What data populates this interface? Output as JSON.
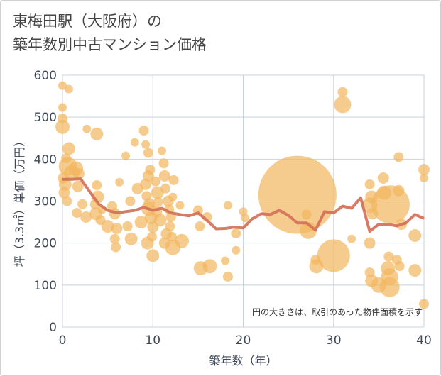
{
  "title_lines": [
    "東梅田駅（大阪府）の",
    "築年数別中古マンション価格"
  ],
  "chart_data": {
    "type": "scatter",
    "title": "東梅田駅（大阪府）の 築年数別中古マンション価格",
    "xlabel": "築年数（年）",
    "ylabel": "坪（3.3㎡）単価（万円）",
    "xlim": [
      0,
      40
    ],
    "ylim": [
      0,
      600
    ],
    "xticks": [
      0,
      10,
      20,
      30,
      40
    ],
    "yticks": [
      0,
      100,
      200,
      300,
      400,
      500,
      600
    ],
    "grid": true,
    "annotation": "円の大きさは、取引のあった物件面積を示す",
    "colors": {
      "bubble": "#f2b75e",
      "line": "#d4705a",
      "grid": "#c8d3df",
      "text": "#3f4756"
    },
    "bubbles": [
      {
        "x": 0,
        "y": 575,
        "r": 6
      },
      {
        "x": 0.7,
        "y": 567,
        "r": 6
      },
      {
        "x": 0,
        "y": 523,
        "r": 6
      },
      {
        "x": 0,
        "y": 497,
        "r": 7
      },
      {
        "x": 0,
        "y": 477,
        "r": 10
      },
      {
        "x": 0.7,
        "y": 425,
        "r": 9
      },
      {
        "x": 0.4,
        "y": 402,
        "r": 7
      },
      {
        "x": 0.6,
        "y": 383,
        "r": 13
      },
      {
        "x": 1,
        "y": 367,
        "r": 11
      },
      {
        "x": 0.1,
        "y": 355,
        "r": 8
      },
      {
        "x": 0.3,
        "y": 340,
        "r": 9
      },
      {
        "x": 0.2,
        "y": 320,
        "r": 8
      },
      {
        "x": 0.5,
        "y": 300,
        "r": 7
      },
      {
        "x": 1.5,
        "y": 378,
        "r": 10
      },
      {
        "x": 1.8,
        "y": 365,
        "r": 8
      },
      {
        "x": 1.7,
        "y": 335,
        "r": 8
      },
      {
        "x": 1.6,
        "y": 272,
        "r": 7
      },
      {
        "x": 2.2,
        "y": 293,
        "r": 7
      },
      {
        "x": 2.6,
        "y": 262,
        "r": 8
      },
      {
        "x": 2.7,
        "y": 472,
        "r": 6
      },
      {
        "x": 3.8,
        "y": 460,
        "r": 9
      },
      {
        "x": 3.8,
        "y": 338,
        "r": 7
      },
      {
        "x": 3.9,
        "y": 310,
        "r": 9
      },
      {
        "x": 3.6,
        "y": 292,
        "r": 7
      },
      {
        "x": 3.7,
        "y": 270,
        "r": 9
      },
      {
        "x": 4.2,
        "y": 255,
        "r": 7
      },
      {
        "x": 4.4,
        "y": 280,
        "r": 6
      },
      {
        "x": 5.0,
        "y": 240,
        "r": 9
      },
      {
        "x": 5.5,
        "y": 288,
        "r": 7
      },
      {
        "x": 5.8,
        "y": 270,
        "r": 8
      },
      {
        "x": 6.0,
        "y": 235,
        "r": 8
      },
      {
        "x": 5.8,
        "y": 210,
        "r": 7
      },
      {
        "x": 5.9,
        "y": 190,
        "r": 7
      },
      {
        "x": 6.3,
        "y": 345,
        "r": 6
      },
      {
        "x": 7.0,
        "y": 408,
        "r": 6
      },
      {
        "x": 7.5,
        "y": 300,
        "r": 7
      },
      {
        "x": 7.2,
        "y": 240,
        "r": 7
      },
      {
        "x": 7.6,
        "y": 210,
        "r": 9
      },
      {
        "x": 8.0,
        "y": 440,
        "r": 6
      },
      {
        "x": 8.3,
        "y": 330,
        "r": 8
      },
      {
        "x": 8.7,
        "y": 250,
        "r": 9
      },
      {
        "x": 9.0,
        "y": 468,
        "r": 7
      },
      {
        "x": 9.2,
        "y": 435,
        "r": 6
      },
      {
        "x": 9.5,
        "y": 415,
        "r": 7
      },
      {
        "x": 9.7,
        "y": 375,
        "r": 7
      },
      {
        "x": 9.5,
        "y": 360,
        "r": 8
      },
      {
        "x": 9.2,
        "y": 340,
        "r": 8
      },
      {
        "x": 9.3,
        "y": 312,
        "r": 7
      },
      {
        "x": 9.6,
        "y": 294,
        "r": 8
      },
      {
        "x": 9.5,
        "y": 282,
        "r": 10
      },
      {
        "x": 9.8,
        "y": 260,
        "r": 9
      },
      {
        "x": 10.0,
        "y": 238,
        "r": 8
      },
      {
        "x": 9.9,
        "y": 215,
        "r": 7
      },
      {
        "x": 9.4,
        "y": 200,
        "r": 9
      },
      {
        "x": 10,
        "y": 170,
        "r": 9
      },
      {
        "x": 10.3,
        "y": 347,
        "r": 7
      },
      {
        "x": 10.5,
        "y": 320,
        "r": 9
      },
      {
        "x": 10.6,
        "y": 298,
        "r": 7
      },
      {
        "x": 10.4,
        "y": 275,
        "r": 8
      },
      {
        "x": 10.8,
        "y": 255,
        "r": 9
      },
      {
        "x": 11.0,
        "y": 420,
        "r": 6
      },
      {
        "x": 11.2,
        "y": 390,
        "r": 7
      },
      {
        "x": 11.3,
        "y": 360,
        "r": 8
      },
      {
        "x": 11.4,
        "y": 330,
        "r": 7
      },
      {
        "x": 11.7,
        "y": 300,
        "r": 8
      },
      {
        "x": 11.8,
        "y": 280,
        "r": 7
      },
      {
        "x": 12.0,
        "y": 262,
        "r": 7
      },
      {
        "x": 11.9,
        "y": 240,
        "r": 7
      },
      {
        "x": 11.5,
        "y": 222,
        "r": 8
      },
      {
        "x": 11.3,
        "y": 200,
        "r": 8
      },
      {
        "x": 12.1,
        "y": 215,
        "r": 7
      },
      {
        "x": 12.2,
        "y": 190,
        "r": 11
      },
      {
        "x": 12.3,
        "y": 350,
        "r": 7
      },
      {
        "x": 12.2,
        "y": 310,
        "r": 6
      },
      {
        "x": 13.0,
        "y": 290,
        "r": 6
      },
      {
        "x": 13.2,
        "y": 205,
        "r": 10
      },
      {
        "x": 15.0,
        "y": 278,
        "r": 7
      },
      {
        "x": 15.2,
        "y": 240,
        "r": 7
      },
      {
        "x": 16.0,
        "y": 262,
        "r": 7
      },
      {
        "x": 15.3,
        "y": 140,
        "r": 10
      },
      {
        "x": 16.3,
        "y": 145,
        "r": 10
      },
      {
        "x": 18.3,
        "y": 290,
        "r": 6
      },
      {
        "x": 19.2,
        "y": 223,
        "r": 7
      },
      {
        "x": 19.2,
        "y": 183,
        "r": 6
      },
      {
        "x": 18.0,
        "y": 158,
        "r": 6
      },
      {
        "x": 18.3,
        "y": 120,
        "r": 7
      },
      {
        "x": 20.0,
        "y": 275,
        "r": 6
      },
      {
        "x": 20.2,
        "y": 260,
        "r": 6
      },
      {
        "x": 26.0,
        "y": 315,
        "r": 55
      },
      {
        "x": 27.0,
        "y": 268,
        "r": 7
      },
      {
        "x": 27.2,
        "y": 230,
        "r": 12
      },
      {
        "x": 28.0,
        "y": 160,
        "r": 7
      },
      {
        "x": 28.1,
        "y": 145,
        "r": 10
      },
      {
        "x": 30.0,
        "y": 170,
        "r": 23
      },
      {
        "x": 31.0,
        "y": 560,
        "r": 7
      },
      {
        "x": 31.0,
        "y": 530,
        "r": 12
      },
      {
        "x": 32.0,
        "y": 210,
        "r": 6
      },
      {
        "x": 34.0,
        "y": 340,
        "r": 7
      },
      {
        "x": 34.2,
        "y": 310,
        "r": 9
      },
      {
        "x": 34.0,
        "y": 290,
        "r": 11
      },
      {
        "x": 34.3,
        "y": 270,
        "r": 8
      },
      {
        "x": 34.0,
        "y": 200,
        "r": 8
      },
      {
        "x": 34.0,
        "y": 130,
        "r": 7
      },
      {
        "x": 34.2,
        "y": 110,
        "r": 9
      },
      {
        "x": 35.0,
        "y": 100,
        "r": 11
      },
      {
        "x": 35.5,
        "y": 355,
        "r": 8
      },
      {
        "x": 35.6,
        "y": 320,
        "r": 10
      },
      {
        "x": 36.3,
        "y": 292,
        "r": 27
      },
      {
        "x": 36.1,
        "y": 168,
        "r": 7
      },
      {
        "x": 36.0,
        "y": 140,
        "r": 10
      },
      {
        "x": 36.2,
        "y": 120,
        "r": 12
      },
      {
        "x": 36.2,
        "y": 95,
        "r": 14
      },
      {
        "x": 37.0,
        "y": 160,
        "r": 7
      },
      {
        "x": 37.3,
        "y": 145,
        "r": 7
      },
      {
        "x": 37.2,
        "y": 325,
        "r": 8
      },
      {
        "x": 37.5,
        "y": 245,
        "r": 8
      },
      {
        "x": 37.2,
        "y": 405,
        "r": 7
      },
      {
        "x": 39.0,
        "y": 218,
        "r": 9
      },
      {
        "x": 39.0,
        "y": 135,
        "r": 9
      },
      {
        "x": 40.0,
        "y": 375,
        "r": 8
      },
      {
        "x": 40.0,
        "y": 355,
        "r": 6
      },
      {
        "x": 40.0,
        "y": 55,
        "r": 7
      }
    ],
    "trend": [
      {
        "x": 0,
        "y": 352
      },
      {
        "x": 1,
        "y": 352
      },
      {
        "x": 2,
        "y": 353
      },
      {
        "x": 3,
        "y": 323
      },
      {
        "x": 4,
        "y": 293
      },
      {
        "x": 5,
        "y": 278
      },
      {
        "x": 6,
        "y": 272
      },
      {
        "x": 7,
        "y": 275
      },
      {
        "x": 8,
        "y": 278
      },
      {
        "x": 9,
        "y": 285
      },
      {
        "x": 10,
        "y": 278
      },
      {
        "x": 11,
        "y": 283
      },
      {
        "x": 12,
        "y": 272
      },
      {
        "x": 13,
        "y": 268
      },
      {
        "x": 14,
        "y": 265
      },
      {
        "x": 15,
        "y": 272
      },
      {
        "x": 16,
        "y": 254
      },
      {
        "x": 17,
        "y": 234
      },
      {
        "x": 18,
        "y": 235
      },
      {
        "x": 19,
        "y": 238
      },
      {
        "x": 20,
        "y": 236
      },
      {
        "x": 21,
        "y": 258
      },
      {
        "x": 22,
        "y": 270
      },
      {
        "x": 23,
        "y": 268
      },
      {
        "x": 24,
        "y": 278
      },
      {
        "x": 25,
        "y": 266
      },
      {
        "x": 26,
        "y": 248
      },
      {
        "x": 27,
        "y": 248
      },
      {
        "x": 28,
        "y": 231
      },
      {
        "x": 29,
        "y": 275
      },
      {
        "x": 30,
        "y": 272
      },
      {
        "x": 31,
        "y": 288
      },
      {
        "x": 32,
        "y": 283
      },
      {
        "x": 33,
        "y": 308
      },
      {
        "x": 34,
        "y": 228
      },
      {
        "x": 35,
        "y": 245
      },
      {
        "x": 36,
        "y": 245
      },
      {
        "x": 37,
        "y": 241
      },
      {
        "x": 38,
        "y": 248
      },
      {
        "x": 39,
        "y": 268
      },
      {
        "x": 40,
        "y": 259
      }
    ]
  }
}
